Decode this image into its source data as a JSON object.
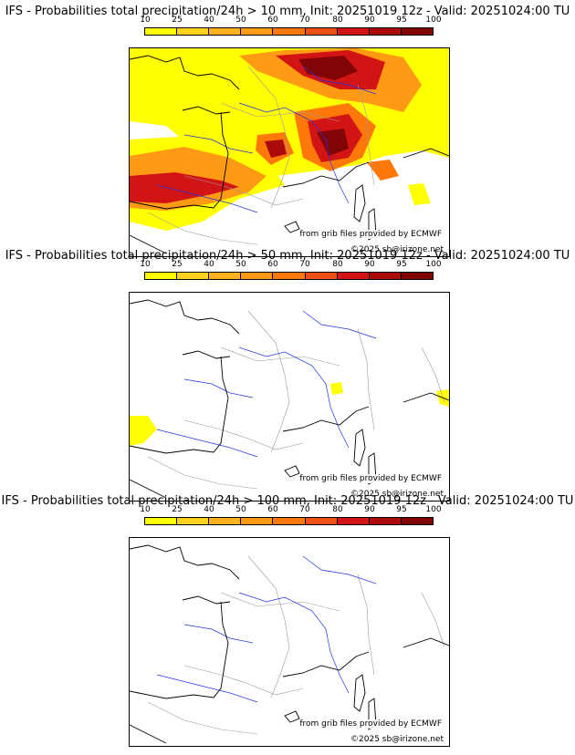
{
  "legend_values": [
    "10",
    "25",
    "40",
    "50",
    "60",
    "70",
    "80",
    "90",
    "95",
    "100"
  ],
  "legend_colors": [
    "#ffff00",
    "#ffd21e",
    "#ffb01e",
    "#ff9a14",
    "#ff780a",
    "#f05014",
    "#d21414",
    "#aa0a0a",
    "#820505",
    "#5a0000"
  ],
  "colors": {
    "coast": "#000000",
    "rivers": "#2233dd",
    "borders": "#9a9a9a"
  },
  "panels": [
    {
      "title": "IFS - Probabilities total precipitation/24h > 10 mm, Init: 20251019 12z - Valid: 20251024:00 TU",
      "credit_source": "from grib files provided by ECMWF",
      "credit_copyright": "©2025 sb@irizone.net"
    },
    {
      "title": "IFS - Probabilities total precipitation/24h > 50 mm, Init: 20251019 12z - Valid: 20251024:00 TU",
      "credit_source": "from grib files provided by ECMWF",
      "credit_copyright": "©2025 sb@irizone.net"
    },
    {
      "title": "IFS - Probabilities total precipitation/24h > 100 mm, Init: 20251019 12z - Valid: 20251024:00 TU",
      "credit_source": "from grib files provided by ECMWF",
      "credit_copyright": "©2025 sb@irizone.net"
    }
  ]
}
